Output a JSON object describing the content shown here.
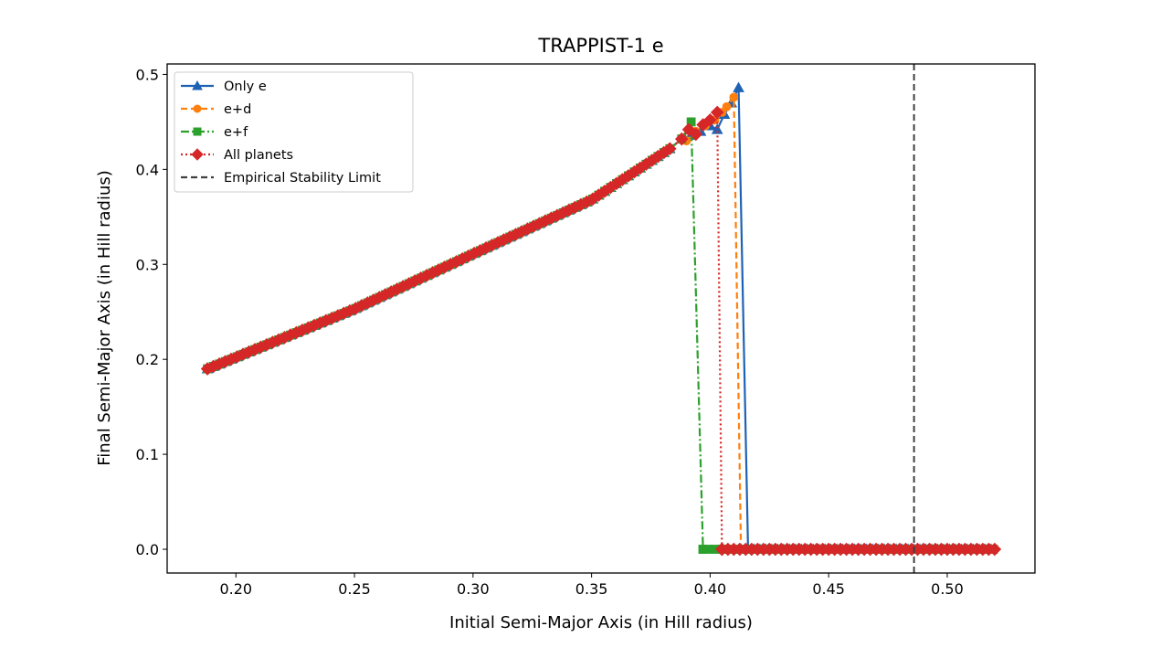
{
  "chart_data": {
    "type": "line",
    "title": "TRAPPIST-1 e",
    "xlabel": "Initial Semi-Major Axis (in Hill radius)",
    "ylabel": "Final Semi-Major Axis (in Hill radius)",
    "xlim": [
      0.171,
      0.537
    ],
    "ylim": [
      -0.025,
      0.511
    ],
    "xticks": [
      0.2,
      0.25,
      0.3,
      0.35,
      0.4,
      0.45,
      0.5
    ],
    "xtick_labels": [
      "0.20",
      "0.25",
      "0.30",
      "0.35",
      "0.40",
      "0.45",
      "0.50"
    ],
    "yticks": [
      0.0,
      0.1,
      0.2,
      0.3,
      0.4,
      0.5
    ],
    "ytick_labels": [
      "0.0",
      "0.1",
      "0.2",
      "0.3",
      "0.4",
      "0.5"
    ],
    "grid": false,
    "legend_position": "upper left",
    "stable_curve": {
      "x_start": 0.188,
      "x_end": 0.385,
      "step": 0.0025,
      "anchors": [
        [
          0.188,
          0.19
        ],
        [
          0.25,
          0.253
        ],
        [
          0.3,
          0.311
        ],
        [
          0.35,
          0.368
        ],
        [
          0.385,
          0.425
        ]
      ]
    },
    "series": [
      {
        "name": "Only e",
        "color": "#1f62b4",
        "marker": "triangle",
        "linestyle": "solid",
        "tail": [
          [
            0.388,
            0.432
          ],
          [
            0.392,
            0.436
          ],
          [
            0.396,
            0.44
          ],
          [
            0.4,
            0.446
          ],
          [
            0.403,
            0.442
          ],
          [
            0.406,
            0.458
          ],
          [
            0.409,
            0.47
          ],
          [
            0.412,
            0.486
          ],
          [
            0.416,
            0.0
          ]
        ],
        "zero_from": 0.416,
        "zero_to": 0.52
      },
      {
        "name": "e+d",
        "color": "#ff7f0e",
        "marker": "circle",
        "linestyle": "dashed",
        "tail": [
          [
            0.388,
            0.432
          ],
          [
            0.39,
            0.43
          ],
          [
            0.394,
            0.44
          ],
          [
            0.398,
            0.446
          ],
          [
            0.402,
            0.452
          ],
          [
            0.405,
            0.46
          ],
          [
            0.407,
            0.466
          ],
          [
            0.41,
            0.476
          ],
          [
            0.413,
            0.0
          ]
        ],
        "zero_from": 0.413,
        "zero_to": 0.52
      },
      {
        "name": "e+f",
        "color": "#2ca02c",
        "marker": "square",
        "linestyle": "dashdot",
        "tail": [
          [
            0.388,
            0.432
          ],
          [
            0.392,
            0.45
          ],
          [
            0.397,
            0.0
          ]
        ],
        "zero_from": 0.397,
        "zero_to": 0.52
      },
      {
        "name": "All planets",
        "color": "#d62728",
        "marker": "diamond",
        "linestyle": "dotted",
        "tail": [
          [
            0.388,
            0.432
          ],
          [
            0.391,
            0.442
          ],
          [
            0.394,
            0.437
          ],
          [
            0.397,
            0.447
          ],
          [
            0.4,
            0.452
          ],
          [
            0.403,
            0.46
          ],
          [
            0.405,
            0.0
          ]
        ],
        "zero_from": 0.405,
        "zero_to": 0.52
      }
    ],
    "vlines": [
      {
        "name": "Empirical Stability Limit",
        "x": 0.486,
        "color": "#404040",
        "linestyle": "dashed"
      }
    ]
  },
  "legend": {
    "items": [
      {
        "label": "Only e"
      },
      {
        "label": "e+d"
      },
      {
        "label": "e+f"
      },
      {
        "label": "All planets"
      },
      {
        "label": "Empirical Stability Limit"
      }
    ]
  }
}
